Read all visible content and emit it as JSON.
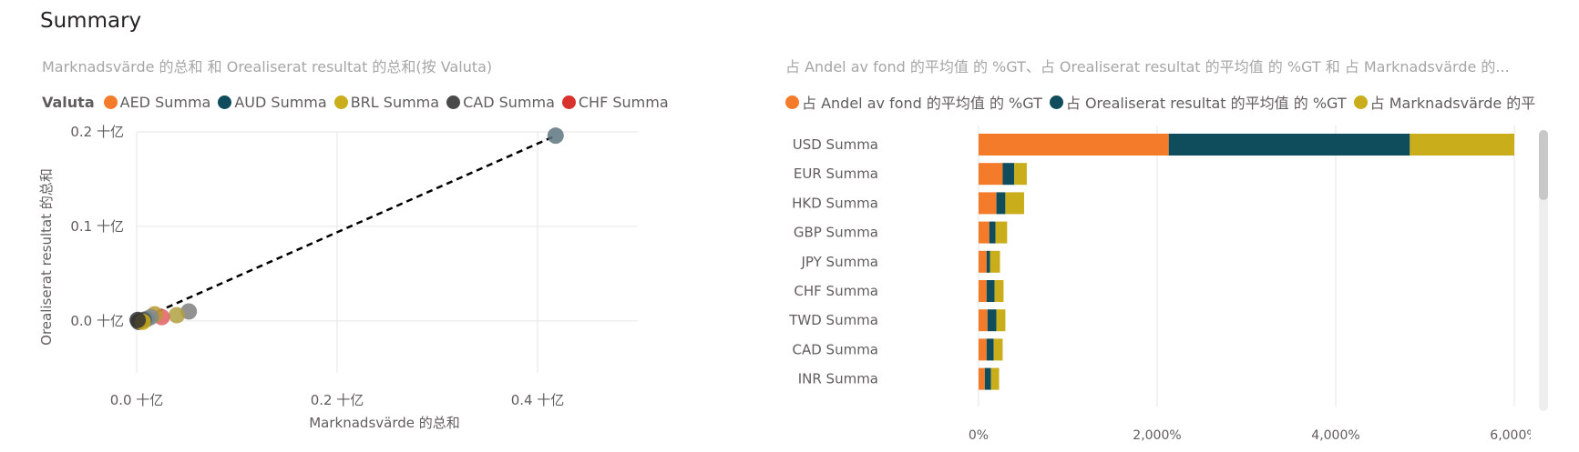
{
  "page": {
    "title": "Summary"
  },
  "colors": {
    "AED": "#f47b2a",
    "AUD": "#0f4c5c",
    "BRL": "#c9ad1a",
    "CAD": "#4a4a4a",
    "CHF": "#d9312c",
    "grid": "#e6e6e6",
    "axis_text": "#605e5c",
    "title_text": "#a6a6a6",
    "trend": "#000000"
  },
  "chart_data": [
    {
      "type": "scatter",
      "title": "Marknadsvärde 的总和 和 Orealiserat resultat 的总和(按 Valuta)",
      "legend_title": "Valuta",
      "legend": [
        {
          "name": "AED Summa",
          "color": "#f47b2a"
        },
        {
          "name": "AUD Summa",
          "color": "#0f4c5c"
        },
        {
          "name": "BRL Summa",
          "color": "#c9ad1a"
        },
        {
          "name": "CAD Summa",
          "color": "#4a4a4a"
        },
        {
          "name": "CHF Summa",
          "color": "#d9312c"
        }
      ],
      "xlabel": "Marknadsvärde 的总和",
      "ylabel": "Orealiserat resultat 的总和",
      "xlim": [
        0,
        0.5
      ],
      "ylim": [
        -0.055,
        0.2
      ],
      "x_ticks": [
        {
          "value": 0.0,
          "label": "0.0 十亿"
        },
        {
          "value": 0.2,
          "label": "0.2 十亿"
        },
        {
          "value": 0.4,
          "label": "0.4 十亿"
        }
      ],
      "y_ticks": [
        {
          "value": 0.0,
          "label": "0.0 十亿"
        },
        {
          "value": 0.1,
          "label": "0.1 十亿"
        },
        {
          "value": 0.2,
          "label": "0.2 十亿"
        }
      ],
      "points": [
        {
          "x": 0.418,
          "y": 0.196,
          "color": "#5e7680"
        },
        {
          "x": 0.052,
          "y": 0.01,
          "color": "#7f7f7f"
        },
        {
          "x": 0.04,
          "y": 0.006,
          "color": "#b0a040"
        },
        {
          "x": 0.025,
          "y": 0.004,
          "color": "#e06060"
        },
        {
          "x": 0.018,
          "y": 0.007,
          "color": "#b89a30"
        },
        {
          "x": 0.014,
          "y": 0.004,
          "color": "#888888"
        },
        {
          "x": 0.01,
          "y": 0.002,
          "color": "#6f8a90"
        },
        {
          "x": 0.007,
          "y": 0.001,
          "color": "#555555"
        },
        {
          "x": 0.004,
          "y": 0.0,
          "color": "#4a4a4a"
        },
        {
          "x": 0.002,
          "y": -0.001,
          "color": "#3f3f3f"
        },
        {
          "x": 0.006,
          "y": -0.001,
          "color": "#c9ad1a"
        },
        {
          "x": 0.001,
          "y": 0.001,
          "color": "#333333"
        }
      ],
      "trendline": {
        "from": [
          0.0,
          0.0
        ],
        "to": [
          0.418,
          0.196
        ]
      }
    },
    {
      "type": "bar",
      "stacked": true,
      "orientation": "horizontal",
      "title": "占 Andel av fond 的平均值 的 %GT、占 Orealiserat resultat 的平均值 的 %GT 和 占 Marknadsvärde 的...",
      "legend_visible": "占 Andel av fond 的平均值 的 %GT ● 占 Orealiserat resultat 的平均值 的 %GT ● 占 Marknadsvärde 的平",
      "series": [
        {
          "name": "占 Andel av fond 的平均值 的 %GT",
          "color": "#f47b2a",
          "values": [
            2130,
            270,
            200,
            120,
            90,
            90,
            100,
            90,
            70
          ]
        },
        {
          "name": "占 Orealiserat resultat 的平均值 的 %GT",
          "color": "#0f4c5c",
          "values": [
            2700,
            130,
            100,
            70,
            40,
            90,
            100,
            80,
            70
          ]
        },
        {
          "name": "占 Marknadsvärde 的平",
          "color": "#c9ad1a",
          "values": [
            1170,
            140,
            210,
            130,
            110,
            100,
            100,
            100,
            90
          ]
        }
      ],
      "categories": [
        "USD Summa",
        "EUR Summa",
        "HKD Summa",
        "GBP Summa",
        "JPY Summa",
        "CHF Summa",
        "TWD Summa",
        "CAD Summa",
        "INR Summa"
      ],
      "xlim": [
        0,
        6000
      ],
      "x_ticks": [
        {
          "value": 0,
          "label": "0%"
        },
        {
          "value": 2000,
          "label": "2,000%"
        },
        {
          "value": 4000,
          "label": "4,000%"
        },
        {
          "value": 6000,
          "label": "6,000%"
        }
      ]
    }
  ]
}
